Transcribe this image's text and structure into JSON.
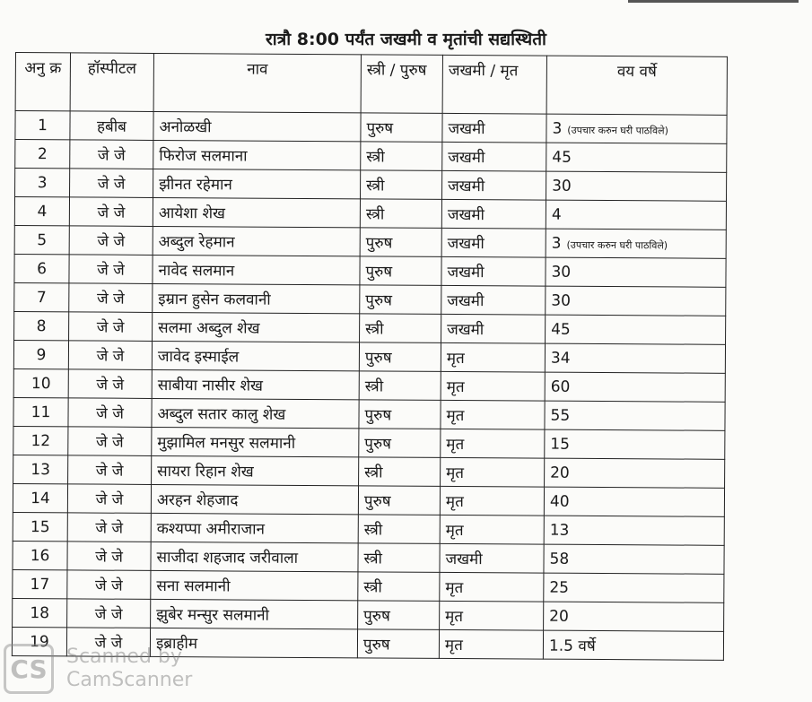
{
  "title": "रात्रौ 8:00 पर्यंत जखमी व मृतांची सद्यस्थिती",
  "headers": [
    "अनु क्र",
    "हॉस्पीटल",
    "नाव",
    "स्त्री / पुरुष",
    "जखमी / मृत",
    "वय वर्षे"
  ],
  "rows": [
    {
      "no": "1",
      "hospital": "हबीब",
      "name": "अनोळखी",
      "gender": "पुरुष",
      "status": "जखमी",
      "age": "3",
      "note": "(उपचार करुन घरी पाठविले)"
    },
    {
      "no": "2",
      "hospital": "जे जे",
      "name": "फिरोज सलमाना",
      "gender": "स्त्री",
      "status": "जखमी",
      "age": "45"
    },
    {
      "no": "3",
      "hospital": "जे जे",
      "name": "झीनत रहेमान",
      "gender": "स्त्री",
      "status": "जखमी",
      "age": "30"
    },
    {
      "no": "4",
      "hospital": "जे जे",
      "name": "आयेशा शेख",
      "gender": "स्त्री",
      "status": "जखमी",
      "age": "4"
    },
    {
      "no": "5",
      "hospital": "जे जे",
      "name": "अब्दुल रेहमान",
      "gender": "पुरुष",
      "status": "जखमी",
      "age": "3",
      "note": "(उपचार करुन घरी पाठविले)"
    },
    {
      "no": "6",
      "hospital": "जे जे",
      "name": "नावेद सलमान",
      "gender": "पुरुष",
      "status": "जखमी",
      "age": "30"
    },
    {
      "no": "7",
      "hospital": "जे जे",
      "name": "इम्रान हुसेन कलवानी",
      "gender": "पुरुष",
      "status": "जखमी",
      "age": "30"
    },
    {
      "no": "8",
      "hospital": "जे जे",
      "name": "सलमा अब्दुल शेख",
      "gender": "स्त्री",
      "status": "जखमी",
      "age": "45"
    },
    {
      "no": "9",
      "hospital": "जे जे",
      "name": "जावेद इस्माईल",
      "gender": "पुरुष",
      "status": "मृत",
      "age": "34"
    },
    {
      "no": "10",
      "hospital": "जे जे",
      "name": "साबीया नासीर शेख",
      "gender": "स्त्री",
      "status": "मृत",
      "age": "60"
    },
    {
      "no": "11",
      "hospital": "जे जे",
      "name": "अब्दुल सतार कालु शेख",
      "gender": "पुरुष",
      "status": "मृत",
      "age": "55"
    },
    {
      "no": "12",
      "hospital": "जे जे",
      "name": "मुझामिल मनसुर सलमानी",
      "gender": "पुरुष",
      "status": "मृत",
      "age": "15"
    },
    {
      "no": "13",
      "hospital": "जे जे",
      "name": "सायरा रिहान शेख",
      "gender": "स्त्री",
      "status": "मृत",
      "age": "20"
    },
    {
      "no": "14",
      "hospital": "जे जे",
      "name": "अरहन शेहजाद",
      "gender": "पुरुष",
      "status": "मृत",
      "age": "40"
    },
    {
      "no": "15",
      "hospital": "जे जे",
      "name": "कश्यप्पा अमीराजान",
      "gender": "स्त्री",
      "status": "मृत",
      "age": "13"
    },
    {
      "no": "16",
      "hospital": "जे जे",
      "name": "साजीदा शहजाद जरीवाला",
      "gender": "स्त्री",
      "status": "जखमी",
      "age": "58"
    },
    {
      "no": "17",
      "hospital": "जे जे",
      "name": "सना सलमानी",
      "gender": "स्त्री",
      "status": "मृत",
      "age": "25"
    },
    {
      "no": "18",
      "hospital": "जे जे",
      "name": "झुबेर मन्सुर सलमानी",
      "gender": "पुरुष",
      "status": "मृत",
      "age": "20"
    },
    {
      "no": "19",
      "hospital": "जे जे",
      "name": "इब्राहीम",
      "gender": "पुरुष",
      "status": "मृत",
      "age": "1.5 वर्षे"
    }
  ],
  "watermark": {
    "logo": "CS",
    "line1": "Scanned by",
    "line2": "CamScanner"
  }
}
